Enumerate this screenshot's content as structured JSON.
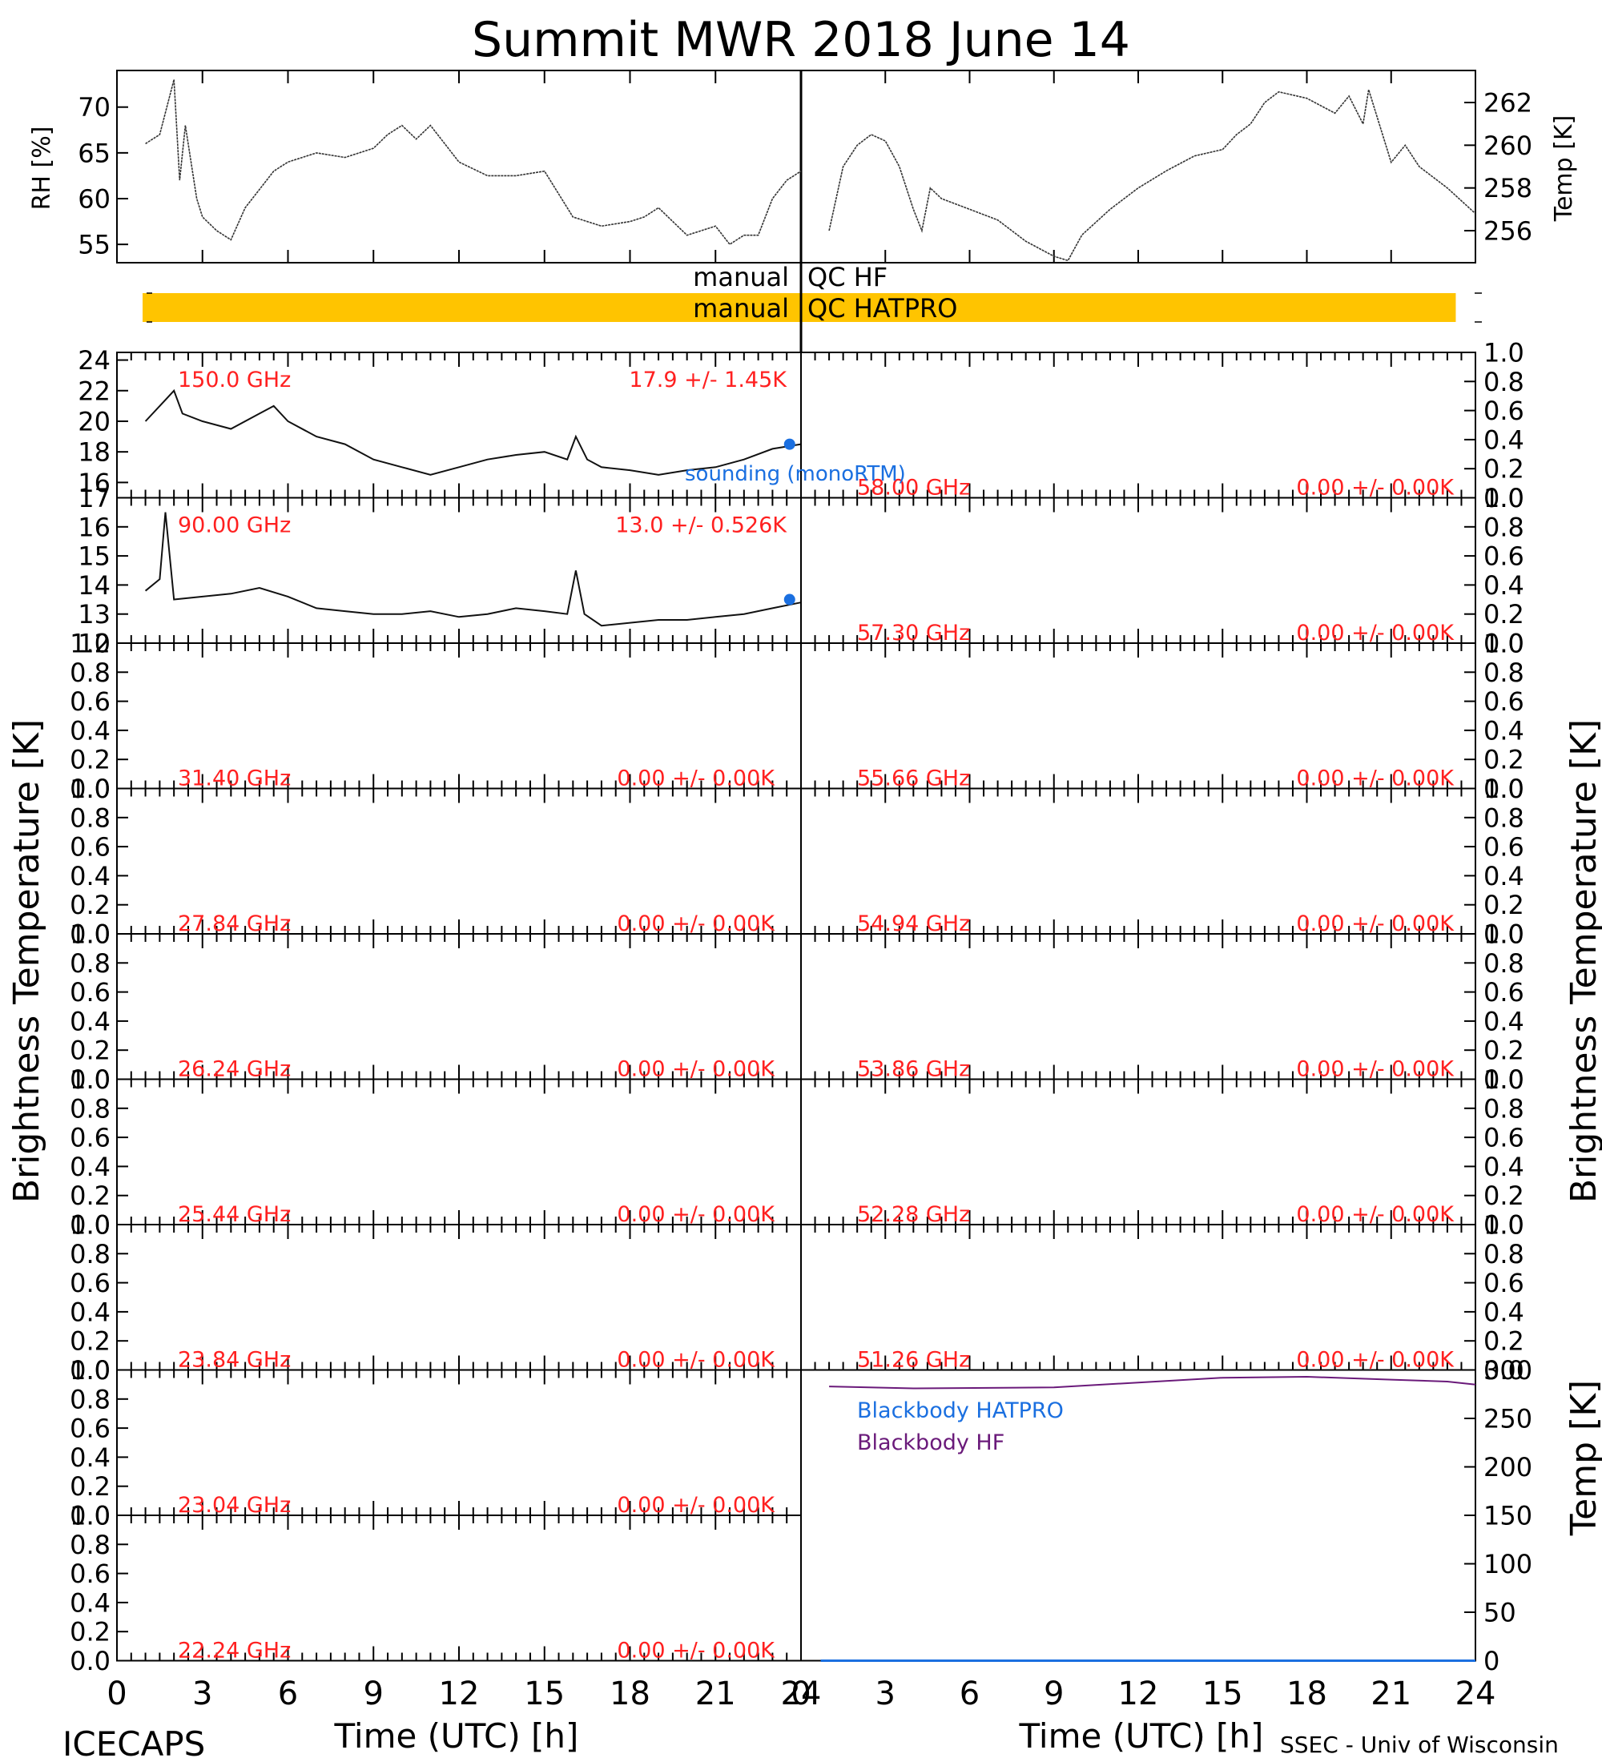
{
  "title": "Summit MWR 2018 June 14",
  "footer": {
    "left": "ICECAPS",
    "right": "SSEC - Univ of Wisconsin",
    "xlabel_left": "Time (UTC) [h]",
    "xlabel_right": "Time (UTC) [h]"
  },
  "ylabels": {
    "rh": "RH [%]",
    "temp": "Temp [K]",
    "tb_left": "Brightness Temperature [K]",
    "tb_right": "Brightness Temperature [K]",
    "bb_temp": "Temp [K]"
  },
  "qc": {
    "hf_left": "manual",
    "hf_right": "QC HF",
    "hatpro_left": "manual",
    "hatpro_right": "QC HATPRO",
    "bar_color": "#ffc400",
    "bar_range_h": [
      0.9,
      23.3
    ]
  },
  "colors": {
    "label_red": "#ff2020",
    "sounding_blue": "#1a6fe0",
    "blackbody_purple": "#6a1a7a"
  },
  "legend": {
    "sounding": "sounding (monoRTM)",
    "blackbody_hatpro": "Blackbody HATPRO",
    "blackbody_hf": "Blackbody HF"
  },
  "chart_data": [
    {
      "id": "rh",
      "type": "line",
      "ylabel": "RH [%]",
      "xlim": [
        0,
        24
      ],
      "ylim": [
        53,
        74
      ],
      "yticks": [
        "55",
        "60",
        "65",
        "70"
      ],
      "x": [
        1.0,
        1.5,
        2.0,
        2.2,
        2.4,
        2.8,
        3.0,
        3.5,
        4.0,
        4.5,
        5.0,
        5.5,
        6.0,
        6.5,
        7.0,
        8.0,
        9.0,
        9.5,
        10.0,
        10.5,
        11.0,
        11.5,
        12.0,
        13.0,
        14.0,
        15.0,
        16.0,
        17.0,
        18.0,
        18.5,
        19.0,
        20.0,
        21.0,
        21.5,
        22.0,
        22.5,
        23.0,
        23.5,
        24.0
      ],
      "y": [
        66,
        67,
        73,
        62,
        68,
        60,
        58,
        56.5,
        55.5,
        59,
        61,
        63,
        64,
        64.5,
        65,
        64.5,
        65.5,
        67,
        68,
        66.5,
        68,
        66,
        64,
        62.5,
        62.5,
        63,
        58,
        57,
        57.5,
        58,
        59,
        56,
        57,
        55,
        56,
        56,
        60,
        62,
        63
      ]
    },
    {
      "id": "temp",
      "type": "line",
      "ylabel": "Temp [K]",
      "xlim": [
        0,
        24
      ],
      "ylim": [
        254.5,
        263.5
      ],
      "yticks": [
        "256",
        "258",
        "260",
        "262"
      ],
      "x": [
        1.0,
        1.5,
        2.0,
        2.5,
        3.0,
        3.5,
        4.0,
        4.3,
        4.6,
        5.0,
        6.0,
        7.0,
        8.0,
        9.0,
        9.5,
        10.0,
        11.0,
        12.0,
        13.0,
        14.0,
        15.0,
        15.5,
        16.0,
        16.5,
        17.0,
        18.0,
        19.0,
        19.5,
        20.0,
        20.2,
        21.0,
        21.5,
        22.0,
        23.0,
        24.0
      ],
      "y": [
        256,
        259,
        260,
        260.5,
        260.2,
        259,
        257,
        256,
        258,
        257.5,
        257,
        256.5,
        255.5,
        254.8,
        254.6,
        255.8,
        257,
        258,
        258.8,
        259.5,
        259.8,
        260.5,
        261,
        262,
        262.5,
        262.2,
        261.5,
        262.3,
        261,
        262.6,
        259.2,
        260,
        259,
        258,
        256.8
      ]
    },
    {
      "id": "tb-150",
      "type": "line",
      "label": "150.0 GHz",
      "stat": "17.9 +/-  1.45K",
      "xlim": [
        0,
        24
      ],
      "ylim": [
        15,
        24.5
      ],
      "yticks": [
        "16",
        "18",
        "20",
        "22",
        "24"
      ],
      "x": [
        1.0,
        1.5,
        2.0,
        2.3,
        3.0,
        4.0,
        5.0,
        5.5,
        6.0,
        7.0,
        8.0,
        9.0,
        10.0,
        11.0,
        12.0,
        13.0,
        14.0,
        15.0,
        15.8,
        16.1,
        16.5,
        17.0,
        18.0,
        19.0,
        20.0,
        21.0,
        22.0,
        23.0,
        24.0
      ],
      "y": [
        20,
        21,
        22,
        20.5,
        20,
        19.5,
        20.5,
        21,
        20,
        19,
        18.5,
        17.5,
        17,
        16.5,
        17,
        17.5,
        17.8,
        18,
        17.5,
        19,
        17.5,
        17,
        16.8,
        16.5,
        16.8,
        17,
        17.5,
        18.2,
        18.5
      ],
      "sounding": {
        "x": 23.6,
        "y": 18.5
      }
    },
    {
      "id": "tb-90",
      "type": "line",
      "label": "90.00 GHz",
      "stat": "13.0 +/- 0.526K",
      "xlim": [
        0,
        24
      ],
      "ylim": [
        12,
        17
      ],
      "yticks": [
        "12",
        "13",
        "14",
        "15",
        "16",
        "17"
      ],
      "x": [
        1.0,
        1.5,
        1.7,
        2.0,
        3.0,
        4.0,
        5.0,
        6.0,
        7.0,
        8.0,
        9.0,
        10.0,
        11.0,
        12.0,
        13.0,
        14.0,
        15.0,
        15.8,
        16.1,
        16.4,
        17.0,
        18.0,
        19.0,
        20.0,
        21.0,
        22.0,
        23.0,
        24.0
      ],
      "y": [
        13.8,
        14.2,
        16.5,
        13.5,
        13.6,
        13.7,
        13.9,
        13.6,
        13.2,
        13.1,
        13.0,
        13.0,
        13.1,
        12.9,
        13.0,
        13.2,
        13.1,
        13.0,
        14.5,
        13.0,
        12.6,
        12.7,
        12.8,
        12.8,
        12.9,
        13.0,
        13.2,
        13.4
      ],
      "sounding": {
        "x": 23.6,
        "y": 13.5
      }
    },
    {
      "id": "tb-31.40",
      "type": "line",
      "label": "31.40 GHz",
      "stat": "0.00 +/-  0.00K",
      "ylim": [
        0,
        1
      ]
    },
    {
      "id": "tb-27.84",
      "type": "line",
      "label": "27.84 GHz",
      "stat": "0.00 +/-  0.00K",
      "ylim": [
        0,
        1
      ]
    },
    {
      "id": "tb-26.24",
      "type": "line",
      "label": "26.24 GHz",
      "stat": "0.00 +/-  0.00K",
      "ylim": [
        0,
        1
      ]
    },
    {
      "id": "tb-25.44",
      "type": "line",
      "label": "25.44 GHz",
      "stat": "0.00 +/-  0.00K",
      "ylim": [
        0,
        1
      ]
    },
    {
      "id": "tb-23.84",
      "type": "line",
      "label": "23.84 GHz",
      "stat": "0.00 +/-  0.00K",
      "ylim": [
        0,
        1
      ]
    },
    {
      "id": "tb-23.04",
      "type": "line",
      "label": "23.04 GHz",
      "stat": "0.00 +/-  0.00K",
      "ylim": [
        0,
        1
      ]
    },
    {
      "id": "tb-22.24",
      "type": "line",
      "label": "22.24 GHz",
      "stat": "0.00 +/-  0.00K",
      "ylim": [
        0,
        1
      ]
    },
    {
      "id": "tb-58.00",
      "type": "line",
      "label": "58.00 GHz",
      "stat": "0.00 +/-  0.00K",
      "ylim": [
        0,
        1
      ]
    },
    {
      "id": "tb-57.30",
      "type": "line",
      "label": "57.30 GHz",
      "stat": "0.00 +/-  0.00K",
      "ylim": [
        0,
        1
      ]
    },
    {
      "id": "tb-55.66",
      "type": "line",
      "label": "55.66 GHz",
      "stat": "0.00 +/-  0.00K",
      "ylim": [
        0,
        1
      ]
    },
    {
      "id": "tb-54.94",
      "type": "line",
      "label": "54.94 GHz",
      "stat": "0.00 +/-  0.00K",
      "ylim": [
        0,
        1
      ]
    },
    {
      "id": "tb-53.86",
      "type": "line",
      "label": "53.86 GHz",
      "stat": "0.00 +/-  0.00K",
      "ylim": [
        0,
        1
      ]
    },
    {
      "id": "tb-52.28",
      "type": "line",
      "label": "52.28 GHz",
      "stat": "0.00 +/-  0.00K",
      "ylim": [
        0,
        1
      ]
    },
    {
      "id": "tb-51.26",
      "type": "line",
      "label": "51.26 GHz",
      "stat": "0.00 +/-  0.00K",
      "ylim": [
        0,
        1
      ]
    },
    {
      "id": "blackbody",
      "type": "line",
      "ylabel": "Temp [K]",
      "xlim": [
        0,
        24
      ],
      "ylim": [
        0,
        300
      ],
      "yticks": [
        "0",
        "50",
        "100",
        "150",
        "200",
        "250",
        "300"
      ],
      "series": [
        {
          "name": "Blackbody HATPRO",
          "x": [
            0.7,
            24
          ],
          "y": [
            0,
            0
          ]
        },
        {
          "name": "Blackbody HF",
          "x": [
            1.0,
            4.0,
            9.0,
            12.0,
            15.0,
            18.0,
            21.0,
            23.0,
            24.0
          ],
          "y": [
            283,
            281,
            282,
            287,
            292,
            293,
            290,
            288,
            285
          ]
        }
      ]
    }
  ],
  "yticks_unit": [
    "0.0",
    "0.2",
    "0.4",
    "0.6",
    "0.8",
    "1.0"
  ],
  "xticks": [
    "0",
    "3",
    "6",
    "9",
    "12",
    "15",
    "18",
    "21",
    "24"
  ]
}
